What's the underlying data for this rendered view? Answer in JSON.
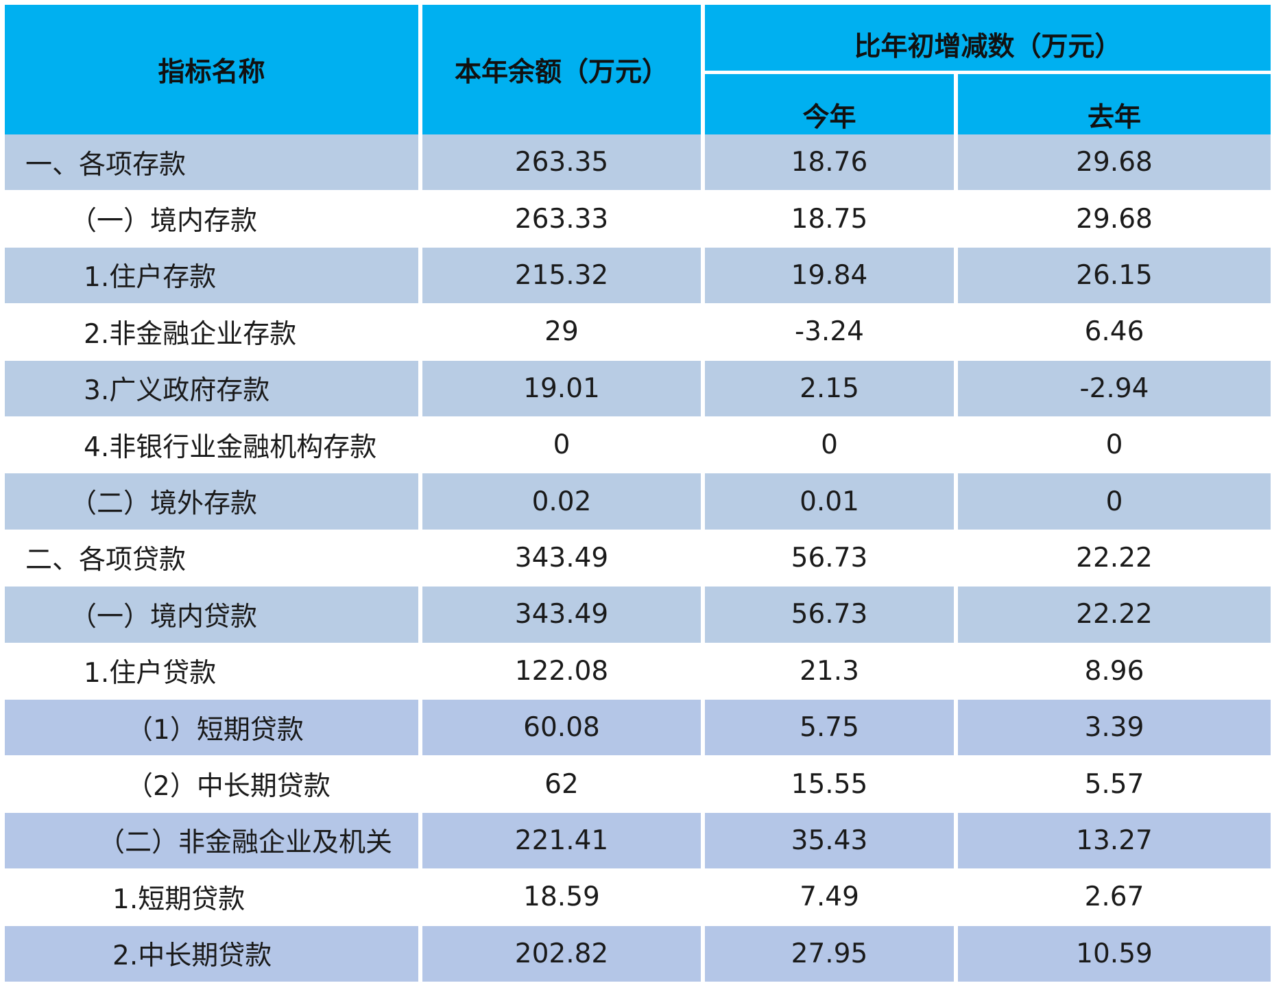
{
  "table": {
    "header": {
      "name": "指标名称",
      "balance": "本年余额（万元）",
      "change": "比年初增减数（万元）",
      "this_year": "今年",
      "last_year": "去年"
    },
    "rows": [
      [
        "一、各项存款",
        263.35,
        18.76,
        29.68
      ],
      [
        "（一）境内存款",
        263.33,
        18.75,
        29.68
      ],
      [
        "1.住户存款",
        215.32,
        19.84,
        26.15
      ],
      [
        "2.非金融企业存款",
        29,
        -3.24,
        6.46
      ],
      [
        "3.广义政府存款",
        19.01,
        2.15,
        -2.94
      ],
      [
        "4.非银行业金融机构存款",
        0,
        0,
        0
      ],
      [
        "（二）境外存款",
        0.02,
        0.01,
        0
      ],
      [
        "二、各项贷款",
        343.49,
        56.73,
        22.22
      ],
      [
        "（一）境内贷款",
        343.49,
        56.73,
        22.22
      ],
      [
        "1.住户贷款",
        122.08,
        21.3,
        8.96
      ],
      [
        "（1）短期贷款",
        60.08,
        5.75,
        3.39
      ],
      [
        "（2）中长期贷款",
        62,
        15.55,
        5.57
      ],
      [
        "（二）非金融企业及机关",
        221.41,
        35.43,
        13.27
      ],
      [
        "1.短期贷款",
        18.59,
        7.49,
        2.67
      ],
      [
        "2.中长期贷款",
        202.82,
        27.95,
        10.59
      ]
    ]
  }
}
